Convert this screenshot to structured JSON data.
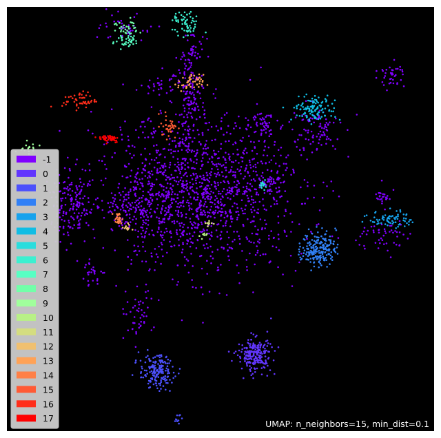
{
  "chart_data": {
    "type": "scatter",
    "title": "",
    "xlabel": "",
    "ylabel": "",
    "axes_visible": false,
    "background": "#000000",
    "annotation": "UMAP: n_neighbors=15, min_dist=0.1",
    "legend": {
      "placement": "lower-left",
      "entries": [
        {
          "label": "-1",
          "color": "#8000ff"
        },
        {
          "label": "0",
          "color": "#6236fe"
        },
        {
          "label": "1",
          "color": "#4c50fc"
        },
        {
          "label": "2",
          "color": "#3180f6"
        },
        {
          "label": "3",
          "color": "#16a2ed"
        },
        {
          "label": "4",
          "color": "#10bde4"
        },
        {
          "label": "5",
          "color": "#2adddd"
        },
        {
          "label": "6",
          "color": "#3cf0d0"
        },
        {
          "label": "7",
          "color": "#57ffc3"
        },
        {
          "label": "8",
          "color": "#72ffa9"
        },
        {
          "label": "9",
          "color": "#a0ff9c"
        },
        {
          "label": "10",
          "color": "#b8f086"
        },
        {
          "label": "11",
          "color": "#d4dd80"
        },
        {
          "label": "12",
          "color": "#f0c070"
        },
        {
          "label": "13",
          "color": "#ffa256"
        },
        {
          "label": "14",
          "color": "#ff8047"
        },
        {
          "label": "15",
          "color": "#ff5a35"
        },
        {
          "label": "16",
          "color": "#ff2d1a"
        },
        {
          "label": "17",
          "color": "#ff0000"
        }
      ]
    },
    "clusters": [
      {
        "label": "-1",
        "center": [
          4.5,
          5.6
        ],
        "spread": [
          2.4,
          1.8
        ],
        "count": 1400
      },
      {
        "label": "-1",
        "center": [
          4.3,
          7.9
        ],
        "spread": [
          0.3,
          1.2
        ],
        "count": 140
      },
      {
        "label": "-1",
        "center": [
          3.2,
          5.4
        ],
        "spread": [
          0.7,
          0.7
        ],
        "count": 120
      },
      {
        "label": "-1",
        "center": [
          1.5,
          5.3
        ],
        "spread": [
          0.6,
          0.7
        ],
        "count": 160
      },
      {
        "label": "-1",
        "center": [
          3.0,
          2.7
        ],
        "spread": [
          0.4,
          0.5
        ],
        "count": 45
      },
      {
        "label": "-1",
        "center": [
          2.0,
          3.7
        ],
        "spread": [
          0.3,
          0.3
        ],
        "count": 25
      },
      {
        "label": "-1",
        "center": [
          6.0,
          7.3
        ],
        "spread": [
          0.3,
          0.3
        ],
        "count": 40
      },
      {
        "label": "-1",
        "center": [
          6.1,
          5.9
        ],
        "spread": [
          0.3,
          0.3
        ],
        "count": 45
      },
      {
        "label": "-1",
        "center": [
          7.2,
          7.1
        ],
        "spread": [
          0.6,
          0.6
        ],
        "count": 80
      },
      {
        "label": "-1",
        "center": [
          8.8,
          4.6
        ],
        "spread": [
          0.6,
          0.4
        ],
        "count": 50
      },
      {
        "label": "-1",
        "center": [
          8.9,
          5.5
        ],
        "spread": [
          0.3,
          0.2
        ],
        "count": 25
      },
      {
        "label": "-1",
        "center": [
          2.8,
          9.5
        ],
        "spread": [
          0.6,
          0.3
        ],
        "count": 40
      },
      {
        "label": "-1",
        "center": [
          3.6,
          8.2
        ],
        "spread": [
          0.3,
          0.3
        ],
        "count": 30
      },
      {
        "label": "-1",
        "center": [
          4.4,
          9.0
        ],
        "spread": [
          0.3,
          0.3
        ],
        "count": 25
      },
      {
        "label": "-1",
        "center": [
          9.0,
          8.4
        ],
        "spread": [
          0.3,
          0.3
        ],
        "count": 40
      },
      {
        "label": "0",
        "center": [
          5.8,
          1.8
        ],
        "spread": [
          0.4,
          0.4
        ],
        "count": 220
      },
      {
        "label": "1",
        "center": [
          3.5,
          1.4
        ],
        "spread": [
          0.4,
          0.4
        ],
        "count": 180
      },
      {
        "label": "1",
        "center": [
          4.0,
          0.3
        ],
        "spread": [
          0.08,
          0.12
        ],
        "count": 10
      },
      {
        "label": "2",
        "center": [
          7.3,
          4.3
        ],
        "spread": [
          0.4,
          0.4
        ],
        "count": 200
      },
      {
        "label": "3",
        "center": [
          9.0,
          5.0
        ],
        "spread": [
          0.5,
          0.2
        ],
        "count": 70
      },
      {
        "label": "4",
        "center": [
          7.2,
          7.6
        ],
        "spread": [
          0.5,
          0.3
        ],
        "count": 120
      },
      {
        "label": "5",
        "center": [
          6.0,
          5.8
        ],
        "spread": [
          0.1,
          0.1
        ],
        "count": 15
      },
      {
        "label": "6",
        "center": [
          4.2,
          9.6
        ],
        "spread": [
          0.3,
          0.3
        ],
        "count": 60
      },
      {
        "label": "7",
        "center": [
          2.8,
          9.2
        ],
        "spread": [
          0.3,
          0.2
        ],
        "count": 40
      },
      {
        "label": "8",
        "center": [
          2.8,
          9.5
        ],
        "spread": [
          0.3,
          0.2
        ],
        "count": 30
      },
      {
        "label": "9",
        "center": [
          0.5,
          6.6
        ],
        "spread": [
          0.25,
          0.25
        ],
        "count": 20
      },
      {
        "label": "10",
        "center": [
          4.6,
          4.6
        ],
        "spread": [
          0.08,
          0.08
        ],
        "count": 8
      },
      {
        "label": "11",
        "center": [
          4.7,
          4.9
        ],
        "spread": [
          0.1,
          0.1
        ],
        "count": 10
      },
      {
        "label": "12",
        "center": [
          2.8,
          4.8
        ],
        "spread": [
          0.1,
          0.1
        ],
        "count": 12
      },
      {
        "label": "13",
        "center": [
          4.3,
          8.2
        ],
        "spread": [
          0.3,
          0.2
        ],
        "count": 45
      },
      {
        "label": "14",
        "center": [
          2.6,
          5.0
        ],
        "spread": [
          0.1,
          0.15
        ],
        "count": 30
      },
      {
        "label": "15",
        "center": [
          3.8,
          7.2
        ],
        "spread": [
          0.2,
          0.3
        ],
        "count": 35
      },
      {
        "label": "16",
        "center": [
          1.7,
          7.8
        ],
        "spread": [
          0.4,
          0.2
        ],
        "count": 50
      },
      {
        "label": "17",
        "center": [
          2.4,
          6.9
        ],
        "spread": [
          0.25,
          0.1
        ],
        "count": 45
      }
    ]
  }
}
